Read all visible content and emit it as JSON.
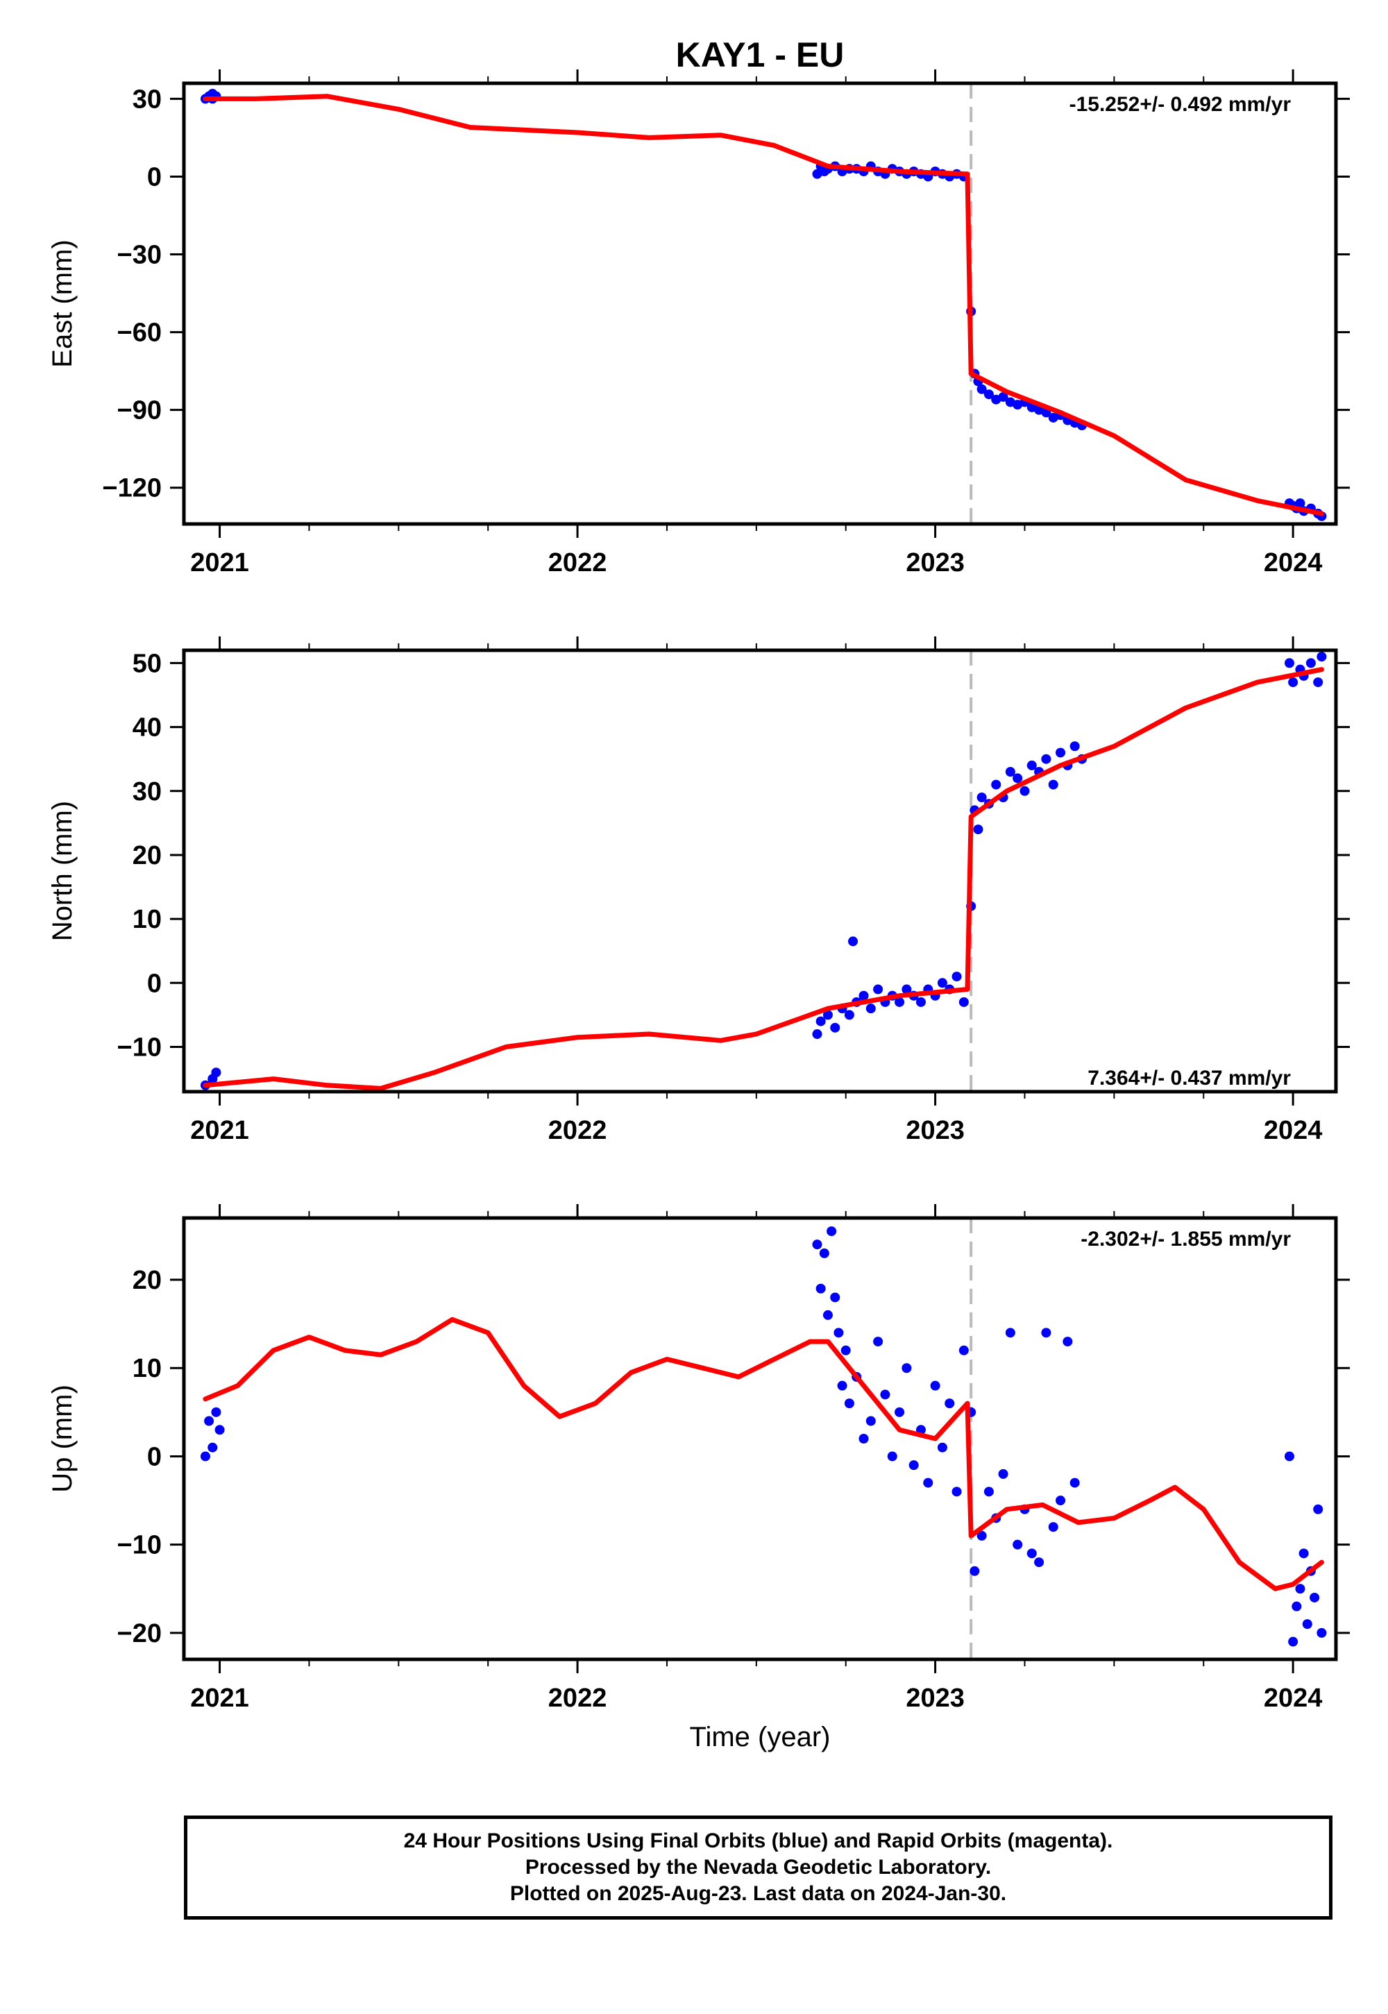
{
  "title": "KAY1 - EU",
  "x_axis_label": "Time (year)",
  "footer": [
    "24 Hour Positions Using Final Orbits (blue) and Rapid Orbits (magenta).",
    "Processed by the Nevada Geodetic Laboratory.",
    "Plotted on 2025-Aug-23. Last data on 2024-Jan-30."
  ],
  "colors": {
    "data": "#0000ff",
    "model": "#ff0000",
    "event_line": "#bbbbbb",
    "frame": "#000000"
  },
  "chart_data": [
    {
      "type": "scatter",
      "ylabel": "East (mm)",
      "rate_label": "-15.252+/- 0.492 mm/yr",
      "rate_position": "top-right",
      "xlim": [
        2020.9,
        2024.12
      ],
      "ylim": [
        -134,
        36
      ],
      "x_ticks": [
        2021,
        2022,
        2023,
        2024
      ],
      "x_tick_labels": [
        "2021",
        "2022",
        "2023",
        "2024"
      ],
      "y_ticks": [
        30,
        0,
        -30,
        -60,
        -90,
        -120
      ],
      "y_tick_labels": [
        "30",
        "0",
        "−30",
        "−60",
        "−90",
        "−120"
      ],
      "event_x": 2023.1,
      "model": {
        "x": [
          2020.96,
          2021.1,
          2021.3,
          2021.5,
          2021.7,
          2022.0,
          2022.2,
          2022.4,
          2022.55,
          2022.7,
          2022.9,
          2023.09,
          2023.1,
          2023.2,
          2023.35,
          2023.5,
          2023.7,
          2023.9,
          2024.08
        ],
        "y": [
          30,
          30,
          31,
          26,
          19,
          17,
          15,
          16,
          12,
          4,
          2,
          1,
          -76,
          -83,
          -91,
          -100,
          -117,
          -125,
          -130
        ]
      },
      "points": {
        "x": [
          2020.96,
          2020.97,
          2020.98,
          2020.98,
          2020.99,
          2022.67,
          2022.68,
          2022.69,
          2022.7,
          2022.72,
          2022.74,
          2022.76,
          2022.78,
          2022.8,
          2022.82,
          2022.84,
          2022.86,
          2022.88,
          2022.9,
          2022.92,
          2022.94,
          2022.96,
          2022.98,
          2023.0,
          2023.02,
          2023.04,
          2023.06,
          2023.08,
          2023.1,
          2023.11,
          2023.12,
          2023.13,
          2023.15,
          2023.17,
          2023.19,
          2023.21,
          2023.23,
          2023.25,
          2023.27,
          2023.29,
          2023.31,
          2023.33,
          2023.35,
          2023.37,
          2023.39,
          2023.41,
          2023.99,
          2024.0,
          2024.01,
          2024.02,
          2024.03,
          2024.05,
          2024.07,
          2024.08
        ],
        "y": [
          30,
          31,
          32,
          30,
          31,
          1,
          4,
          2,
          3,
          4,
          2,
          3,
          3,
          2,
          4,
          2,
          1,
          3,
          2,
          1,
          2,
          1,
          0,
          2,
          1,
          0,
          1,
          0,
          -52,
          -76,
          -79,
          -82,
          -84,
          -86,
          -85,
          -87,
          -88,
          -87,
          -89,
          -90,
          -91,
          -93,
          -92,
          -94,
          -95,
          -96,
          -126,
          -127,
          -128,
          -126,
          -129,
          -128,
          -130,
          -131
        ]
      }
    },
    {
      "type": "scatter",
      "ylabel": "North (mm)",
      "rate_label": "7.364+/- 0.437 mm/yr",
      "rate_position": "bottom-right",
      "xlim": [
        2020.9,
        2024.12
      ],
      "ylim": [
        -17,
        52
      ],
      "x_ticks": [
        2021,
        2022,
        2023,
        2024
      ],
      "x_tick_labels": [
        "2021",
        "2022",
        "2023",
        "2024"
      ],
      "y_ticks": [
        50,
        40,
        30,
        20,
        10,
        0,
        -10
      ],
      "y_tick_labels": [
        "50",
        "40",
        "30",
        "20",
        "10",
        "0",
        "−10"
      ],
      "event_x": 2023.1,
      "model": {
        "x": [
          2020.96,
          2021.15,
          2021.3,
          2021.45,
          2021.6,
          2021.8,
          2022.0,
          2022.2,
          2022.4,
          2022.5,
          2022.7,
          2022.9,
          2023.09,
          2023.1,
          2023.2,
          2023.35,
          2023.5,
          2023.7,
          2023.9,
          2024.08
        ],
        "y": [
          -16,
          -15,
          -16,
          -16.5,
          -14,
          -10,
          -8.5,
          -8,
          -9,
          -8,
          -4,
          -2,
          -1,
          26,
          30,
          34,
          37,
          43,
          47,
          49
        ]
      },
      "points": {
        "x": [
          2020.96,
          2020.98,
          2020.99,
          2022.67,
          2022.68,
          2022.7,
          2022.72,
          2022.74,
          2022.76,
          2022.77,
          2022.78,
          2022.8,
          2022.82,
          2022.84,
          2022.86,
          2022.88,
          2022.9,
          2022.92,
          2022.94,
          2022.96,
          2022.98,
          2023.0,
          2023.02,
          2023.04,
          2023.06,
          2023.08,
          2023.1,
          2023.11,
          2023.12,
          2023.13,
          2023.15,
          2023.17,
          2023.19,
          2023.21,
          2023.23,
          2023.25,
          2023.27,
          2023.29,
          2023.31,
          2023.33,
          2023.35,
          2023.37,
          2023.39,
          2023.41,
          2023.99,
          2024.0,
          2024.02,
          2024.03,
          2024.05,
          2024.07,
          2024.08
        ],
        "y": [
          -16,
          -15,
          -14,
          -8,
          -6,
          -5,
          -7,
          -4,
          -5,
          6.5,
          -3,
          -2,
          -4,
          -1,
          -3,
          -2,
          -3,
          -1,
          -2,
          -3,
          -1,
          -2,
          0,
          -1,
          1,
          -3,
          12,
          27,
          24,
          29,
          28,
          31,
          29,
          33,
          32,
          30,
          34,
          33,
          35,
          31,
          36,
          34,
          37,
          35,
          50,
          47,
          49,
          48,
          50,
          47,
          51
        ]
      }
    },
    {
      "type": "scatter",
      "ylabel": "Up (mm)",
      "rate_label": "-2.302+/- 1.855 mm/yr",
      "rate_position": "top-right",
      "xlim": [
        2020.9,
        2024.12
      ],
      "ylim": [
        -23,
        27
      ],
      "x_ticks": [
        2021,
        2022,
        2023,
        2024
      ],
      "x_tick_labels": [
        "2021",
        "2022",
        "2023",
        "2024"
      ],
      "y_ticks": [
        20,
        10,
        0,
        -10,
        -20
      ],
      "y_tick_labels": [
        "20",
        "10",
        "0",
        "−10",
        "−20"
      ],
      "event_x": 2023.1,
      "model": {
        "x": [
          2020.96,
          2021.05,
          2021.15,
          2021.25,
          2021.35,
          2021.45,
          2021.55,
          2021.65,
          2021.75,
          2021.85,
          2021.95,
          2022.05,
          2022.15,
          2022.25,
          2022.35,
          2022.45,
          2022.55,
          2022.65,
          2022.7,
          2022.8,
          2022.9,
          2023.0,
          2023.09,
          2023.1,
          2023.2,
          2023.3,
          2023.4,
          2023.5,
          2023.6,
          2023.67,
          2023.75,
          2023.85,
          2023.95,
          2024.0,
          2024.08
        ],
        "y": [
          6.5,
          8,
          12,
          13.5,
          12,
          11.5,
          13,
          15.5,
          14,
          8,
          4.5,
          6,
          9.5,
          11,
          10,
          9,
          11,
          13,
          13,
          8,
          3,
          2,
          6,
          -9,
          -6,
          -5.5,
          -7.5,
          -7,
          -5,
          -3.5,
          -6,
          -12,
          -15,
          -14.5,
          -12
        ]
      },
      "points": {
        "x": [
          2020.96,
          2020.97,
          2020.98,
          2020.99,
          2021.0,
          2022.67,
          2022.68,
          2022.69,
          2022.7,
          2022.71,
          2022.72,
          2022.73,
          2022.74,
          2022.75,
          2022.76,
          2022.78,
          2022.8,
          2022.82,
          2022.84,
          2022.86,
          2022.88,
          2022.9,
          2022.92,
          2022.94,
          2022.96,
          2022.98,
          2023.0,
          2023.02,
          2023.04,
          2023.06,
          2023.08,
          2023.1,
          2023.11,
          2023.13,
          2023.15,
          2023.17,
          2023.19,
          2023.21,
          2023.23,
          2023.25,
          2023.27,
          2023.29,
          2023.31,
          2023.33,
          2023.35,
          2023.37,
          2023.39,
          2023.99,
          2024.0,
          2024.01,
          2024.02,
          2024.03,
          2024.04,
          2024.05,
          2024.06,
          2024.07,
          2024.08
        ],
        "y": [
          0,
          4,
          1,
          5,
          3,
          24,
          19,
          23,
          16,
          25.5,
          18,
          14,
          8,
          12,
          6,
          9,
          2,
          4,
          13,
          7,
          0,
          5,
          10,
          -1,
          3,
          -3,
          8,
          1,
          6,
          -4,
          12,
          5,
          -13,
          -9,
          -4,
          -7,
          -2,
          14,
          -10,
          -6,
          -11,
          -12,
          14,
          -8,
          -5,
          13,
          -3,
          0,
          -21,
          -17,
          -15,
          -11,
          -19,
          -13,
          -16,
          -6,
          -20
        ]
      }
    }
  ]
}
